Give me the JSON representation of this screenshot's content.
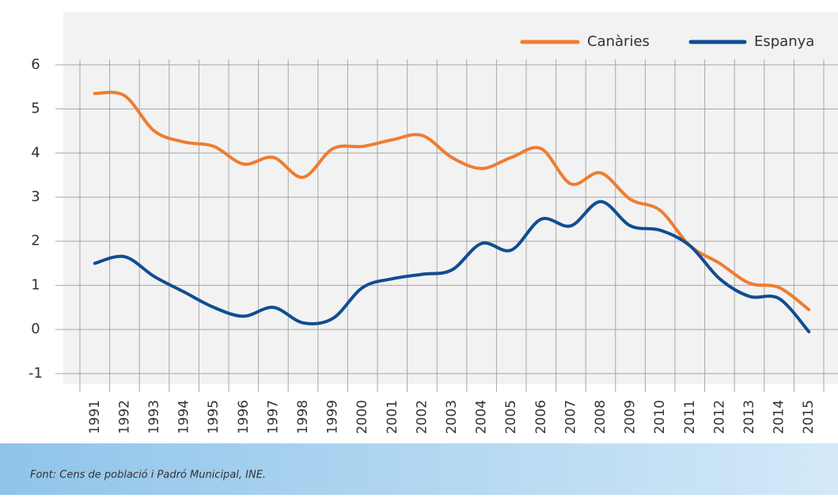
{
  "chart_data": {
    "type": "line",
    "categories": [
      "1991",
      "1992",
      "1993",
      "1994",
      "1995",
      "1996",
      "1997",
      "1998",
      "1999",
      "2000",
      "2001",
      "2002",
      "2003",
      "2004",
      "2005",
      "2006",
      "2007",
      "2008",
      "2009",
      "2010",
      "2011",
      "2012",
      "2013",
      "2014",
      "2015"
    ],
    "series": [
      {
        "name": "Canàries",
        "color": "#ee7d31",
        "values": [
          5.35,
          5.3,
          4.5,
          4.25,
          4.15,
          3.75,
          3.9,
          3.45,
          4.1,
          4.15,
          4.3,
          4.4,
          3.9,
          3.65,
          3.9,
          4.1,
          3.3,
          3.55,
          2.95,
          2.7,
          1.9,
          1.5,
          1.05,
          0.95,
          0.45
        ]
      },
      {
        "name": "Espanya",
        "color": "#0f4d92",
        "values": [
          1.5,
          1.65,
          1.2,
          0.85,
          0.5,
          0.3,
          0.5,
          0.15,
          0.25,
          0.95,
          1.15,
          1.25,
          1.35,
          1.95,
          1.8,
          2.5,
          2.35,
          2.9,
          2.35,
          2.25,
          1.9,
          1.15,
          0.75,
          0.7,
          -0.05
        ]
      }
    ],
    "ylim": [
      -1.2,
      7.2
    ],
    "yticks": [
      -1,
      0,
      1,
      2,
      3,
      4,
      5,
      6
    ],
    "grid": true,
    "legend": "top-right",
    "source": "Font: Cens de població i Padró Municipal, INE."
  }
}
